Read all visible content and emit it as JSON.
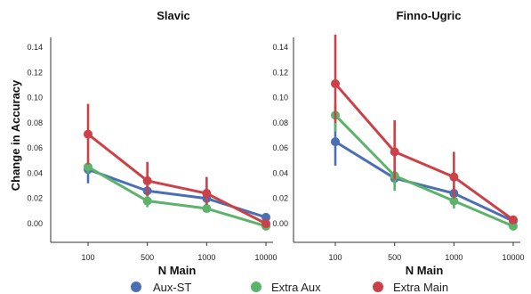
{
  "chart_data": [
    {
      "type": "line",
      "title": "Slavic",
      "ylabel": "Change in Accuracy",
      "xlabel": "N Main",
      "categories": [
        "100",
        "500",
        "1000",
        "10000"
      ],
      "ylim": [
        0,
        0.14
      ],
      "yticks": [
        "0.00",
        "0.02",
        "0.04",
        "0.06",
        "0.08",
        "0.10",
        "0.12",
        "0.14"
      ],
      "series": [
        {
          "name": "Aux-ST",
          "color": "#4a6fb5",
          "values": [
            0.043,
            0.026,
            0.02,
            0.005
          ],
          "err_low": [
            0.032,
            0.022,
            0.017,
            0.003
          ],
          "err_high": [
            0.047,
            0.03,
            0.023,
            0.006
          ]
        },
        {
          "name": "Extra Aux",
          "color": "#5cb36a",
          "values": [
            0.045,
            0.018,
            0.012,
            -0.002
          ],
          "err_low": [
            0.04,
            0.013,
            0.009,
            -0.004
          ],
          "err_high": [
            0.048,
            0.022,
            0.014,
            0.0
          ]
        },
        {
          "name": "Extra Main",
          "color": "#cc4148",
          "values": [
            0.071,
            0.034,
            0.024,
            0.0
          ],
          "err_low": [
            0.047,
            0.022,
            0.015,
            -0.002
          ],
          "err_high": [
            0.095,
            0.049,
            0.037,
            0.002
          ]
        }
      ]
    },
    {
      "type": "line",
      "title": "Finno-Ugric",
      "ylabel": "",
      "xlabel": "N Main",
      "categories": [
        "100",
        "500",
        "1000",
        "10000"
      ],
      "ylim": [
        0,
        0.14
      ],
      "yticks": [
        "0.00",
        "0.02",
        "0.04",
        "0.06",
        "0.08",
        "0.10",
        "0.12",
        "0.14"
      ],
      "series": [
        {
          "name": "Aux-ST",
          "color": "#4a6fb5",
          "values": [
            0.065,
            0.036,
            0.024,
            0.002
          ],
          "err_low": [
            0.046,
            0.031,
            0.018,
            0.0
          ],
          "err_high": [
            0.08,
            0.041,
            0.03,
            0.004
          ]
        },
        {
          "name": "Extra Aux",
          "color": "#5cb36a",
          "values": [
            0.086,
            0.038,
            0.018,
            -0.002
          ],
          "err_low": [
            0.073,
            0.026,
            0.012,
            -0.004
          ],
          "err_high": [
            0.095,
            0.042,
            0.024,
            0.0
          ]
        },
        {
          "name": "Extra Main",
          "color": "#cc4148",
          "values": [
            0.111,
            0.057,
            0.037,
            0.003
          ],
          "err_low": [
            0.08,
            0.035,
            0.02,
            0.001
          ],
          "err_high": [
            0.15,
            0.082,
            0.057,
            0.005
          ]
        }
      ]
    }
  ],
  "legend": {
    "placement": "bottom",
    "items": [
      {
        "label": "Aux-ST",
        "color": "#4a6fb5"
      },
      {
        "label": "Extra Aux",
        "color": "#5cb36a"
      },
      {
        "label": "Extra Main",
        "color": "#cc4148"
      }
    ]
  }
}
